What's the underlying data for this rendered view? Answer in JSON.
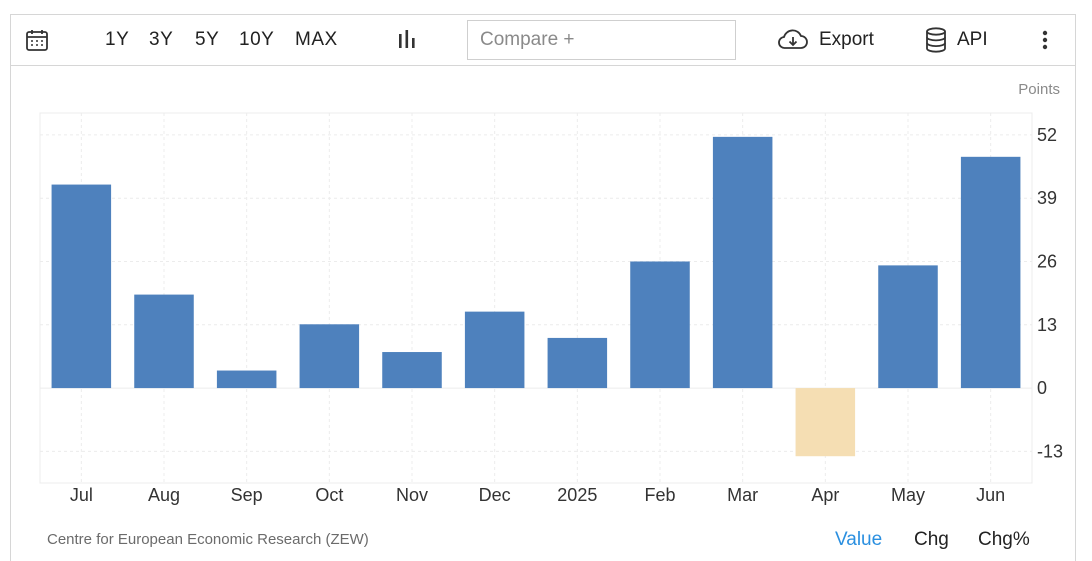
{
  "toolbar": {
    "ranges": [
      "1Y",
      "3Y",
      "5Y",
      "10Y",
      "MAX"
    ],
    "compare_placeholder": "Compare +",
    "export_label": "Export",
    "api_label": "API",
    "icons": {
      "calendar": "calendar-icon",
      "chart_type": "bar-chart-icon",
      "export": "cloud-download-icon",
      "api": "database-icon",
      "more": "more-vertical-icon"
    }
  },
  "chart_data": {
    "type": "bar",
    "unit_label": "Points",
    "categories": [
      "Jul",
      "Aug",
      "Sep",
      "Oct",
      "Nov",
      "Dec",
      "2025",
      "Feb",
      "Mar",
      "Apr",
      "May",
      "Jun"
    ],
    "values": [
      41.8,
      19.2,
      3.6,
      13.1,
      7.4,
      15.7,
      10.3,
      26.0,
      51.6,
      -14.0,
      25.2,
      47.5
    ],
    "yticks": [
      52,
      39,
      26,
      13,
      0,
      -13
    ],
    "ylim": [
      -19.5,
      56.5
    ],
    "positive_color": "#4e81bd",
    "negative_color": "#f5deb3",
    "grid": true
  },
  "footer": {
    "source": "Centre for European Economic Research (ZEW)",
    "views": [
      "Value",
      "Chg",
      "Chg%"
    ],
    "active_view": "Value",
    "active_color": "#2a8fe0"
  }
}
